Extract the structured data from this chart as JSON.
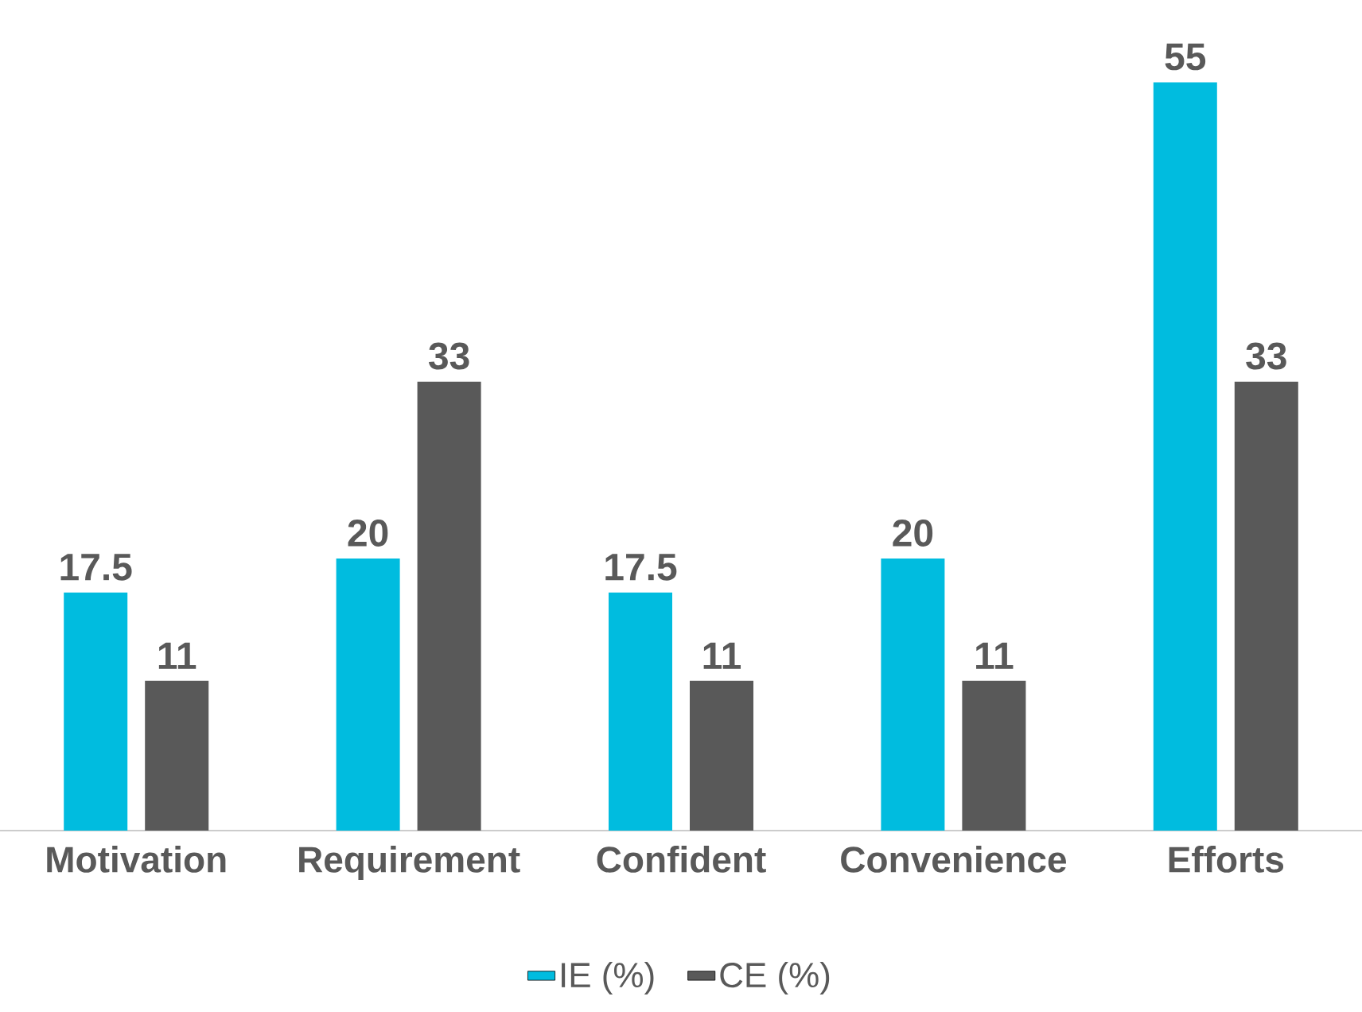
{
  "chart_data": {
    "type": "bar",
    "categories": [
      "Motivation",
      "Requirement",
      "Confident",
      "Convenience",
      "Efforts"
    ],
    "series": [
      {
        "name": "IE (%)",
        "color": "#00bcdf",
        "values": [
          17.5,
          20,
          17.5,
          20,
          55
        ]
      },
      {
        "name": "CE (%)",
        "color": "#595959",
        "values": [
          11,
          33,
          11,
          11,
          33
        ]
      }
    ],
    "data_labels": true,
    "legend": "bottom"
  }
}
